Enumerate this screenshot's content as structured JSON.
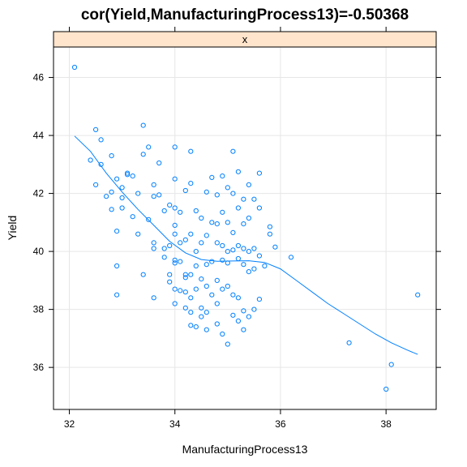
{
  "chart_data": {
    "type": "scatter",
    "title": "cor(Yield,ManufacturingProcess13)=-0.50368",
    "strip_label": "x",
    "xlabel": "ManufacturingProcess13",
    "ylabel": "Yield",
    "xlim": [
      31.7,
      38.95
    ],
    "ylim": [
      34.55,
      47.05
    ],
    "xticks": [
      32,
      34,
      36,
      38
    ],
    "yticks": [
      36,
      38,
      40,
      42,
      44,
      46
    ],
    "grid": true,
    "colors": {
      "points": "#0080ff",
      "smooth": "#0080ff",
      "strip": "#ffe5cc",
      "grid": "#e6e6e6",
      "frame": "#000000"
    },
    "points": [
      [
        32.1,
        46.35
      ],
      [
        32.4,
        43.15
      ],
      [
        32.5,
        44.2
      ],
      [
        32.6,
        43.85
      ],
      [
        32.6,
        43.0
      ],
      [
        32.5,
        42.3
      ],
      [
        32.7,
        41.9
      ],
      [
        32.8,
        43.3
      ],
      [
        32.8,
        42.05
      ],
      [
        32.8,
        41.45
      ],
      [
        32.9,
        42.5
      ],
      [
        32.9,
        40.7
      ],
      [
        32.9,
        39.5
      ],
      [
        32.9,
        38.5
      ],
      [
        33.0,
        42.2
      ],
      [
        33.0,
        41.85
      ],
      [
        33.0,
        41.5
      ],
      [
        33.1,
        42.7
      ],
      [
        33.1,
        42.65
      ],
      [
        33.2,
        42.6
      ],
      [
        33.2,
        41.2
      ],
      [
        33.3,
        42.0
      ],
      [
        33.3,
        40.6
      ],
      [
        33.4,
        44.35
      ],
      [
        33.4,
        43.35
      ],
      [
        33.4,
        39.2
      ],
      [
        33.5,
        43.6
      ],
      [
        33.5,
        41.1
      ],
      [
        33.6,
        42.3
      ],
      [
        33.6,
        41.9
      ],
      [
        33.6,
        40.3
      ],
      [
        33.6,
        40.1
      ],
      [
        33.6,
        38.4
      ],
      [
        33.7,
        43.05
      ],
      [
        33.7,
        41.95
      ],
      [
        33.8,
        41.4
      ],
      [
        33.8,
        40.1
      ],
      [
        33.8,
        39.8
      ],
      [
        33.9,
        41.6
      ],
      [
        33.9,
        40.2
      ],
      [
        33.9,
        39.2
      ],
      [
        33.9,
        38.95
      ],
      [
        34.0,
        43.6
      ],
      [
        34.0,
        42.5
      ],
      [
        34.0,
        41.5
      ],
      [
        34.0,
        40.9
      ],
      [
        34.0,
        40.6
      ],
      [
        34.0,
        39.7
      ],
      [
        34.0,
        39.6
      ],
      [
        34.0,
        38.7
      ],
      [
        34.0,
        38.2
      ],
      [
        34.1,
        41.35
      ],
      [
        34.1,
        40.3
      ],
      [
        34.1,
        39.65
      ],
      [
        34.1,
        38.65
      ],
      [
        34.2,
        42.1
      ],
      [
        34.2,
        40.4
      ],
      [
        34.2,
        39.2
      ],
      [
        34.2,
        39.1
      ],
      [
        34.2,
        38.6
      ],
      [
        34.2,
        38.05
      ],
      [
        34.3,
        43.45
      ],
      [
        34.3,
        42.35
      ],
      [
        34.3,
        40.6
      ],
      [
        34.3,
        39.2
      ],
      [
        34.3,
        38.4
      ],
      [
        34.3,
        37.9
      ],
      [
        34.3,
        37.45
      ],
      [
        34.4,
        41.4
      ],
      [
        34.4,
        40.0
      ],
      [
        34.4,
        39.5
      ],
      [
        34.4,
        38.7
      ],
      [
        34.4,
        37.4
      ],
      [
        34.5,
        41.15
      ],
      [
        34.5,
        40.3
      ],
      [
        34.5,
        39.05
      ],
      [
        34.5,
        38.05
      ],
      [
        34.5,
        37.75
      ],
      [
        34.6,
        42.05
      ],
      [
        34.6,
        40.55
      ],
      [
        34.6,
        39.55
      ],
      [
        34.6,
        38.8
      ],
      [
        34.6,
        37.9
      ],
      [
        34.6,
        37.3
      ],
      [
        34.7,
        42.55
      ],
      [
        34.7,
        41.0
      ],
      [
        34.7,
        39.65
      ],
      [
        34.7,
        38.5
      ],
      [
        34.8,
        41.95
      ],
      [
        34.8,
        40.95
      ],
      [
        34.8,
        40.3
      ],
      [
        34.8,
        39.0
      ],
      [
        34.8,
        38.2
      ],
      [
        34.8,
        37.5
      ],
      [
        34.9,
        42.6
      ],
      [
        34.9,
        41.35
      ],
      [
        34.9,
        40.2
      ],
      [
        34.9,
        39.7
      ],
      [
        34.9,
        38.7
      ],
      [
        34.9,
        37.15
      ],
      [
        35.0,
        42.2
      ],
      [
        35.0,
        41.0
      ],
      [
        35.0,
        40.0
      ],
      [
        35.0,
        39.6
      ],
      [
        35.0,
        38.8
      ],
      [
        35.0,
        36.8
      ],
      [
        35.1,
        43.45
      ],
      [
        35.1,
        42.0
      ],
      [
        35.1,
        40.65
      ],
      [
        35.1,
        40.05
      ],
      [
        35.1,
        38.5
      ],
      [
        35.1,
        37.8
      ],
      [
        35.2,
        42.75
      ],
      [
        35.2,
        41.5
      ],
      [
        35.2,
        40.2
      ],
      [
        35.2,
        39.75
      ],
      [
        35.2,
        38.4
      ],
      [
        35.2,
        37.6
      ],
      [
        35.3,
        41.8
      ],
      [
        35.3,
        40.95
      ],
      [
        35.3,
        40.1
      ],
      [
        35.3,
        39.55
      ],
      [
        35.3,
        37.95
      ],
      [
        35.3,
        37.3
      ],
      [
        35.4,
        42.3
      ],
      [
        35.4,
        41.15
      ],
      [
        35.4,
        40.0
      ],
      [
        35.4,
        39.3
      ],
      [
        35.4,
        37.75
      ],
      [
        35.5,
        41.8
      ],
      [
        35.5,
        40.1
      ],
      [
        35.5,
        39.4
      ],
      [
        35.5,
        38.0
      ],
      [
        35.6,
        42.7
      ],
      [
        35.6,
        41.5
      ],
      [
        35.6,
        39.85
      ],
      [
        35.6,
        38.35
      ],
      [
        35.7,
        39.5
      ],
      [
        35.8,
        40.85
      ],
      [
        35.8,
        40.6
      ],
      [
        35.9,
        40.15
      ],
      [
        36.2,
        39.8
      ],
      [
        37.3,
        36.85
      ],
      [
        38.0,
        35.25
      ],
      [
        38.1,
        36.1
      ],
      [
        38.6,
        38.5
      ]
    ],
    "smooth": [
      [
        32.1,
        43.98
      ],
      [
        32.4,
        43.45
      ],
      [
        32.7,
        42.7
      ],
      [
        33.0,
        42.05
      ],
      [
        33.3,
        41.45
      ],
      [
        33.6,
        40.9
      ],
      [
        33.9,
        40.35
      ],
      [
        34.2,
        39.95
      ],
      [
        34.5,
        39.72
      ],
      [
        34.8,
        39.66
      ],
      [
        35.1,
        39.67
      ],
      [
        35.4,
        39.68
      ],
      [
        35.7,
        39.62
      ],
      [
        36.0,
        39.4
      ],
      [
        36.3,
        39.0
      ],
      [
        36.6,
        38.6
      ],
      [
        36.9,
        38.2
      ],
      [
        37.2,
        37.85
      ],
      [
        37.5,
        37.5
      ],
      [
        37.8,
        37.15
      ],
      [
        38.1,
        36.85
      ],
      [
        38.4,
        36.6
      ],
      [
        38.6,
        36.45
      ]
    ]
  }
}
